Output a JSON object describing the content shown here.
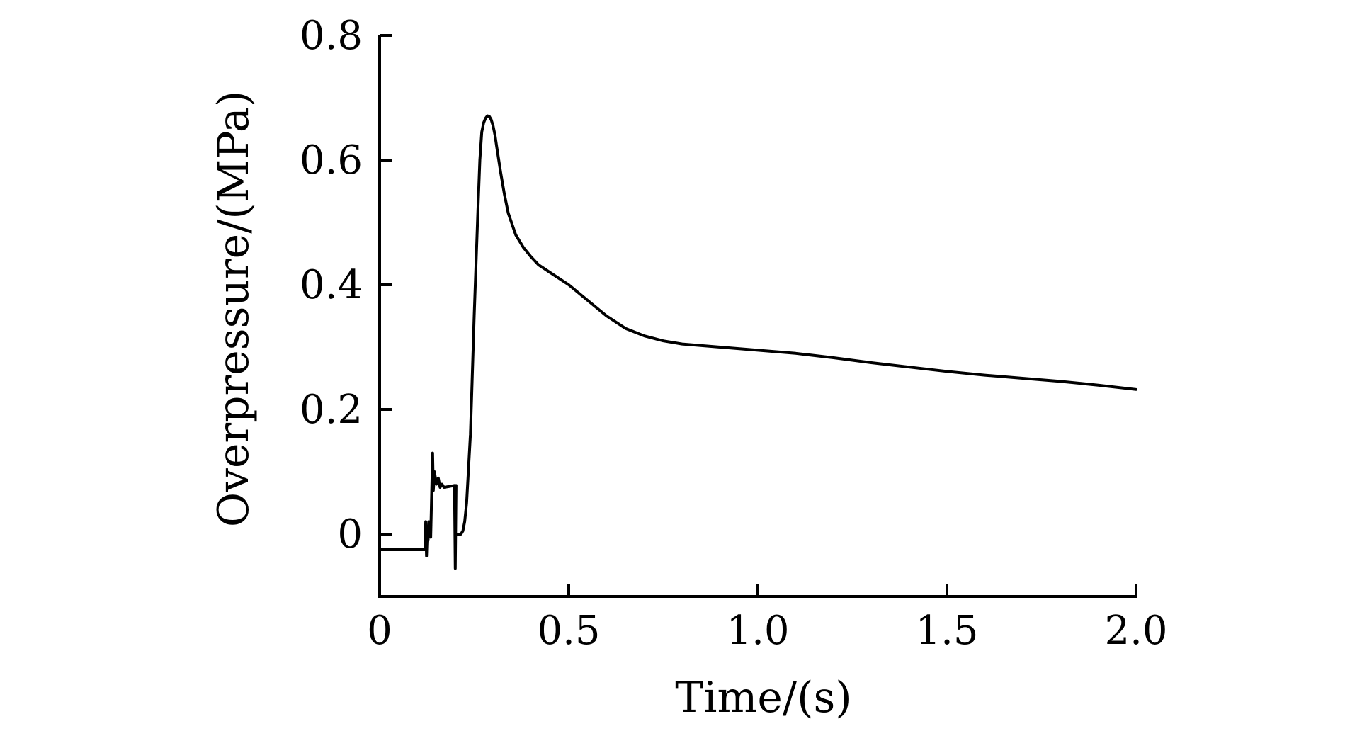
{
  "chart_data": {
    "type": "line",
    "title": "",
    "xlabel": "Time/(s)",
    "ylabel": "Overpressure/(MPa)",
    "xlim": [
      0,
      2.0
    ],
    "ylim": [
      -0.1,
      0.8
    ],
    "x_ticks": [
      0,
      0.5,
      1.0,
      1.5,
      2.0
    ],
    "x_tick_labels": [
      "0",
      "0.5",
      "1.0",
      "1.5",
      "2.0"
    ],
    "y_ticks": [
      0,
      0.2,
      0.4,
      0.6,
      0.8
    ],
    "y_tick_labels": [
      "0",
      "0.2",
      "0.4",
      "0.6",
      "0.8"
    ],
    "grid": false,
    "legend": "none",
    "line_color": "#000000",
    "series": [
      {
        "x": [
          0.0,
          0.12,
          0.122,
          0.124,
          0.126,
          0.128,
          0.13,
          0.135,
          0.14,
          0.142,
          0.145,
          0.15,
          0.155,
          0.16,
          0.165,
          0.17,
          0.18,
          0.19,
          0.198,
          0.2,
          0.202,
          0.2,
          0.21,
          0.215,
          0.22,
          0.225,
          0.23,
          0.24,
          0.25,
          0.26,
          0.265,
          0.27,
          0.275,
          0.28,
          0.285,
          0.29,
          0.295,
          0.3,
          0.305,
          0.31,
          0.32,
          0.33,
          0.34,
          0.36,
          0.38,
          0.4,
          0.42,
          0.45,
          0.5,
          0.55,
          0.6,
          0.65,
          0.7,
          0.75,
          0.8,
          0.9,
          1.0,
          1.1,
          1.2,
          1.3,
          1.4,
          1.5,
          1.6,
          1.7,
          1.8,
          1.9,
          2.0
        ],
        "y": [
          -0.025,
          -0.025,
          0.02,
          -0.035,
          0.0,
          -0.01,
          0.02,
          -0.005,
          0.13,
          0.07,
          0.1,
          0.08,
          0.09,
          0.075,
          0.08,
          0.075,
          0.076,
          0.077,
          0.078,
          -0.055,
          0.078,
          0.0,
          0.0,
          0.0,
          0.005,
          0.02,
          0.05,
          0.16,
          0.35,
          0.52,
          0.6,
          0.645,
          0.66,
          0.667,
          0.671,
          0.67,
          0.665,
          0.655,
          0.64,
          0.62,
          0.58,
          0.545,
          0.515,
          0.48,
          0.46,
          0.445,
          0.432,
          0.42,
          0.4,
          0.375,
          0.35,
          0.33,
          0.318,
          0.31,
          0.305,
          0.3,
          0.295,
          0.29,
          0.283,
          0.275,
          0.268,
          0.261,
          0.255,
          0.25,
          0.245,
          0.239,
          0.232
        ]
      }
    ]
  }
}
